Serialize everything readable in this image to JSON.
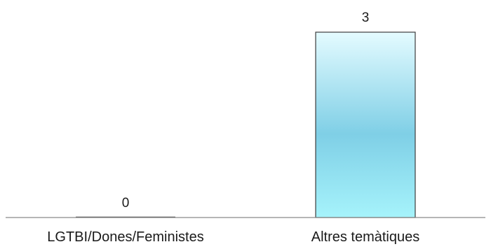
{
  "chart_data": {
    "type": "bar",
    "categories": [
      "LGTBI/Dones/Feministes",
      "Altres temàtiques"
    ],
    "values": [
      0,
      3
    ],
    "ylim": [
      0,
      3
    ],
    "grid": false,
    "legend": "none",
    "data_labels": [
      "0",
      "3"
    ]
  },
  "colors": {
    "bar_top": "#e4fbff",
    "bar_mid": "#7fcfe6",
    "bar_bottom": "#a6f3fb",
    "bar_border": "#3c3c3c",
    "axis": "#8a8a8a"
  }
}
